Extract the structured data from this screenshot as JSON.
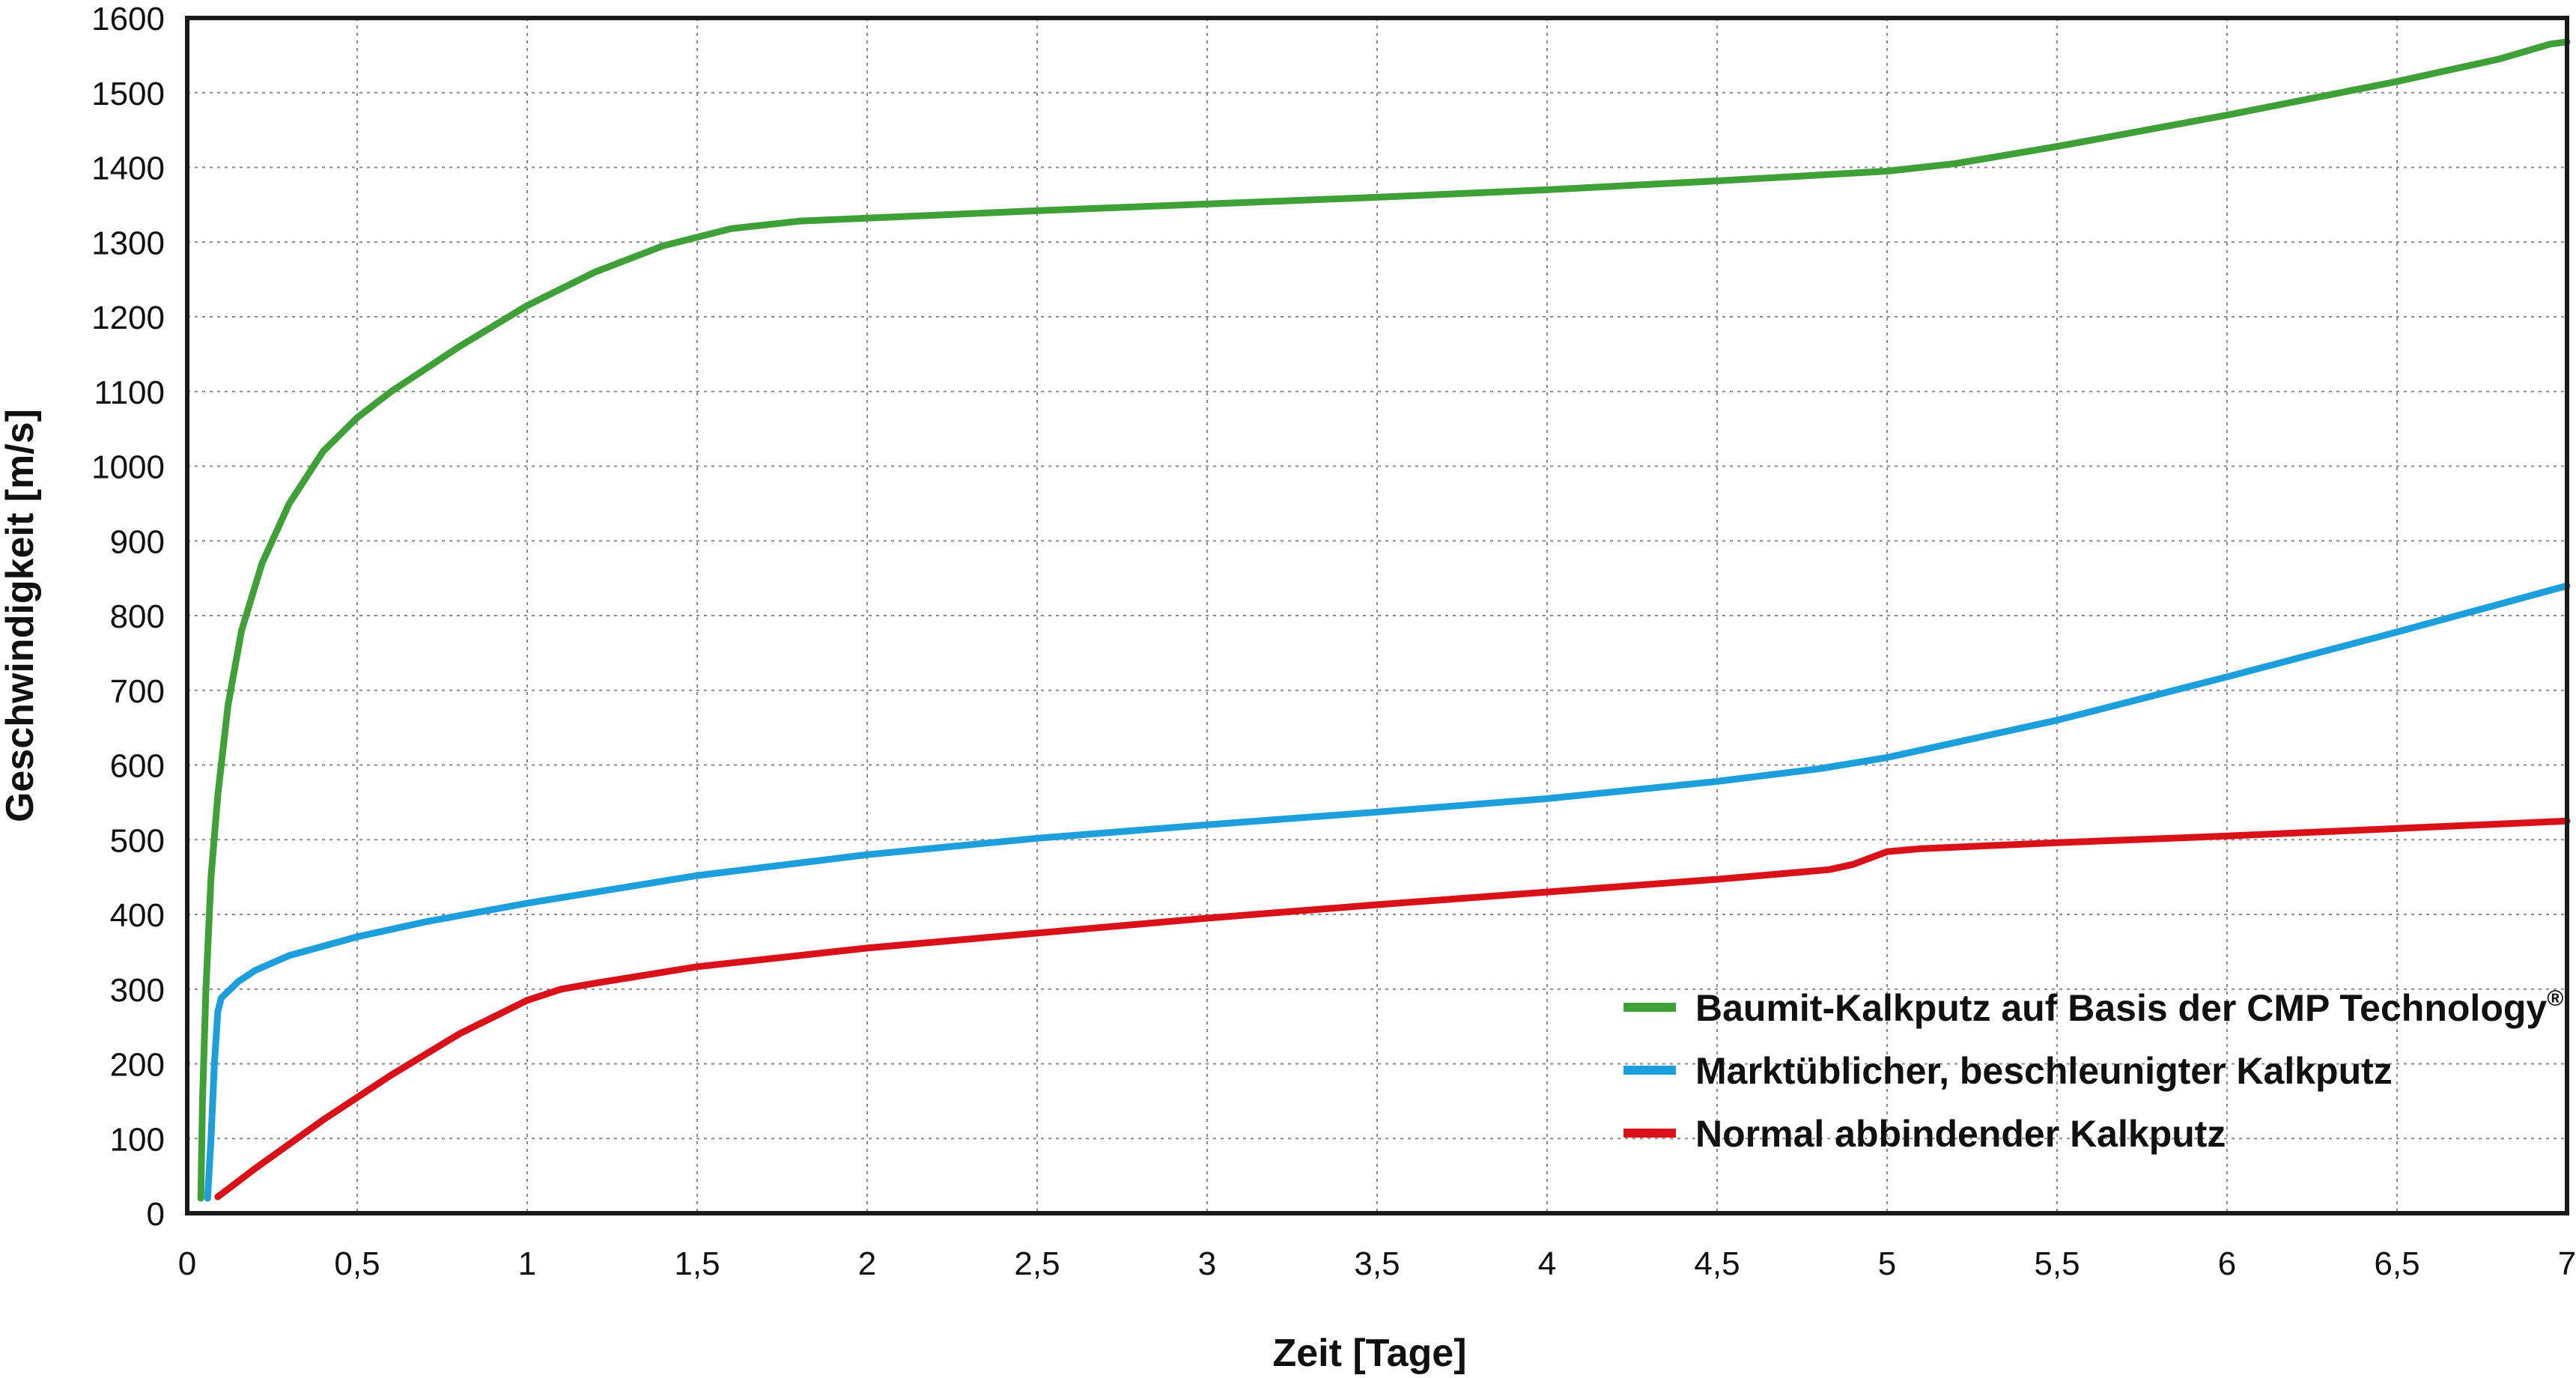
{
  "chart_data": {
    "type": "line",
    "title": "",
    "xlabel": "Zeit [Tage]",
    "ylabel": "Geschwindigkeit [m/s]",
    "xlim": [
      0,
      7
    ],
    "ylim": [
      0,
      1600
    ],
    "xticks": [
      {
        "v": 0,
        "label": "0"
      },
      {
        "v": 0.5,
        "label": "0,5"
      },
      {
        "v": 1,
        "label": "1"
      },
      {
        "v": 1.5,
        "label": "1,5"
      },
      {
        "v": 2,
        "label": "2"
      },
      {
        "v": 2.5,
        "label": "2,5"
      },
      {
        "v": 3,
        "label": "3"
      },
      {
        "v": 3.5,
        "label": "3,5"
      },
      {
        "v": 4,
        "label": "4"
      },
      {
        "v": 4.5,
        "label": "4,5"
      },
      {
        "v": 5,
        "label": "5"
      },
      {
        "v": 5.5,
        "label": "5,5"
      },
      {
        "v": 6,
        "label": "6"
      },
      {
        "v": 6.5,
        "label": "6,5"
      },
      {
        "v": 7,
        "label": "7"
      }
    ],
    "yticks": [
      {
        "v": 0,
        "label": "0"
      },
      {
        "v": 100,
        "label": "100"
      },
      {
        "v": 200,
        "label": "200"
      },
      {
        "v": 300,
        "label": "300"
      },
      {
        "v": 400,
        "label": "400"
      },
      {
        "v": 500,
        "label": "500"
      },
      {
        "v": 600,
        "label": "600"
      },
      {
        "v": 700,
        "label": "700"
      },
      {
        "v": 800,
        "label": "800"
      },
      {
        "v": 900,
        "label": "900"
      },
      {
        "v": 1000,
        "label": "1000"
      },
      {
        "v": 1100,
        "label": "1100"
      },
      {
        "v": 1200,
        "label": "1200"
      },
      {
        "v": 1300,
        "label": "1300"
      },
      {
        "v": 1400,
        "label": "1400"
      },
      {
        "v": 1500,
        "label": "1500"
      },
      {
        "v": 1600,
        "label": "1600"
      }
    ],
    "grid": true,
    "legend_position": "bottom-right",
    "series": [
      {
        "name": "Baumit-Kalkputz auf Basis der CMP Technology",
        "name_suffix": "®",
        "color": "#3fa037",
        "points": [
          [
            0.04,
            20
          ],
          [
            0.045,
            150
          ],
          [
            0.055,
            300
          ],
          [
            0.07,
            450
          ],
          [
            0.09,
            560
          ],
          [
            0.12,
            680
          ],
          [
            0.16,
            780
          ],
          [
            0.22,
            870
          ],
          [
            0.3,
            950
          ],
          [
            0.4,
            1020
          ],
          [
            0.5,
            1065
          ],
          [
            0.6,
            1100
          ],
          [
            0.8,
            1160
          ],
          [
            1.0,
            1215
          ],
          [
            1.2,
            1260
          ],
          [
            1.4,
            1295
          ],
          [
            1.6,
            1318
          ],
          [
            1.8,
            1328
          ],
          [
            2.0,
            1332
          ],
          [
            2.5,
            1342
          ],
          [
            3.0,
            1351
          ],
          [
            3.5,
            1360
          ],
          [
            4.0,
            1370
          ],
          [
            4.5,
            1382
          ],
          [
            5.0,
            1395
          ],
          [
            5.2,
            1405
          ],
          [
            5.5,
            1428
          ],
          [
            6.0,
            1470
          ],
          [
            6.5,
            1515
          ],
          [
            6.8,
            1545
          ],
          [
            6.95,
            1565
          ],
          [
            7.0,
            1568
          ]
        ]
      },
      {
        "name": "Marktüblicher, beschleunigter Kalkputz",
        "name_suffix": "",
        "color": "#1d9fdb",
        "points": [
          [
            0.06,
            20
          ],
          [
            0.07,
            100
          ],
          [
            0.08,
            200
          ],
          [
            0.09,
            270
          ],
          [
            0.1,
            288
          ],
          [
            0.15,
            310
          ],
          [
            0.2,
            325
          ],
          [
            0.3,
            345
          ],
          [
            0.5,
            370
          ],
          [
            0.7,
            390
          ],
          [
            1.0,
            415
          ],
          [
            1.5,
            452
          ],
          [
            2.0,
            480
          ],
          [
            2.5,
            502
          ],
          [
            3.0,
            520
          ],
          [
            3.5,
            537
          ],
          [
            4.0,
            555
          ],
          [
            4.5,
            578
          ],
          [
            4.8,
            595
          ],
          [
            5.0,
            610
          ],
          [
            5.5,
            660
          ],
          [
            6.0,
            718
          ],
          [
            6.5,
            778
          ],
          [
            7.0,
            840
          ]
        ]
      },
      {
        "name": "Normal abbindender Kalkputz",
        "name_suffix": "",
        "color": "#d9121a",
        "points": [
          [
            0.09,
            22
          ],
          [
            0.2,
            60
          ],
          [
            0.4,
            125
          ],
          [
            0.6,
            185
          ],
          [
            0.8,
            240
          ],
          [
            1.0,
            285
          ],
          [
            1.1,
            300
          ],
          [
            1.2,
            308
          ],
          [
            1.5,
            330
          ],
          [
            2.0,
            355
          ],
          [
            2.5,
            375
          ],
          [
            3.0,
            395
          ],
          [
            3.5,
            413
          ],
          [
            4.0,
            430
          ],
          [
            4.5,
            447
          ],
          [
            4.83,
            460
          ],
          [
            4.9,
            467
          ],
          [
            5.0,
            484
          ],
          [
            5.1,
            488
          ],
          [
            5.5,
            496
          ],
          [
            6.0,
            505
          ],
          [
            6.5,
            515
          ],
          [
            7.0,
            525
          ]
        ]
      }
    ]
  }
}
